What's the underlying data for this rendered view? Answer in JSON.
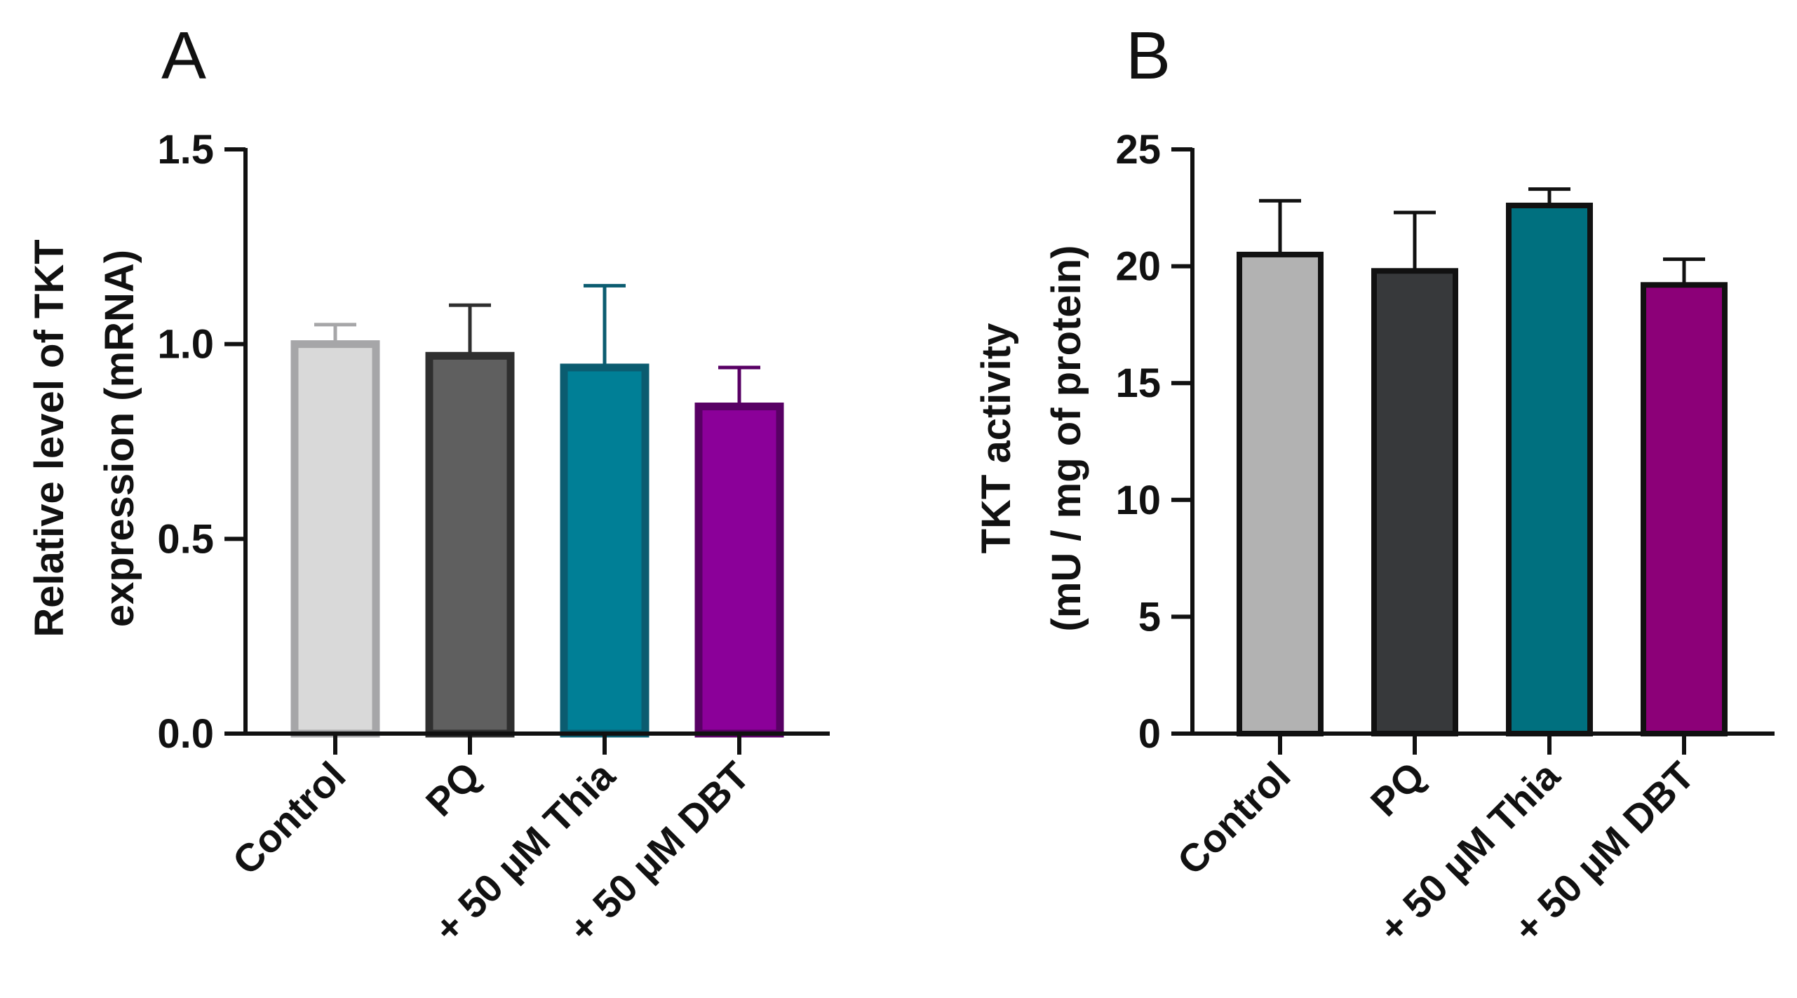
{
  "chart_data": [
    {
      "panel": "A",
      "type": "bar",
      "categories": [
        "Control",
        "PQ",
        "+ 50 µM Thia",
        "+ 50 µM DBT"
      ],
      "values": [
        1.0,
        0.97,
        0.94,
        0.84
      ],
      "errors": [
        0.05,
        0.13,
        0.21,
        0.1
      ],
      "ylabel_lines": [
        "Relative level of TKT",
        "expression (mRNA)"
      ],
      "ylim": [
        0,
        1.5
      ],
      "yticks": [
        "0.0",
        "0.5",
        "1.0",
        "1.5"
      ],
      "ytick_values": [
        0,
        0.5,
        1.0,
        1.5
      ],
      "bar_fill": [
        "#d9d9d9",
        "#5f5f5f",
        "#007f96",
        "#8b0099"
      ],
      "bar_stroke": [
        "#a6a6a8",
        "#2f2f2f",
        "#0b5c70",
        "#580064"
      ],
      "grid": false
    },
    {
      "panel": "B",
      "type": "bar",
      "categories": [
        "Control",
        "PQ",
        "+ 50 µM Thia",
        "+ 50 µM DBT"
      ],
      "values": [
        20.5,
        19.8,
        22.6,
        19.2
      ],
      "errors": [
        2.3,
        2.5,
        0.7,
        1.1
      ],
      "ylabel_lines": [
        "TKT activity",
        "(mU / mg of protein)"
      ],
      "ylim": [
        0,
        25
      ],
      "yticks": [
        "0",
        "5",
        "10",
        "15",
        "20",
        "25"
      ],
      "ytick_values": [
        0,
        5,
        10,
        15,
        20,
        25
      ],
      "bar_fill": [
        "#b2b2b2",
        "#37393b",
        "#00707f",
        "#8c0078"
      ],
      "bar_stroke": [
        "#111111",
        "#111111",
        "#111111",
        "#111111"
      ],
      "grid": false
    }
  ]
}
